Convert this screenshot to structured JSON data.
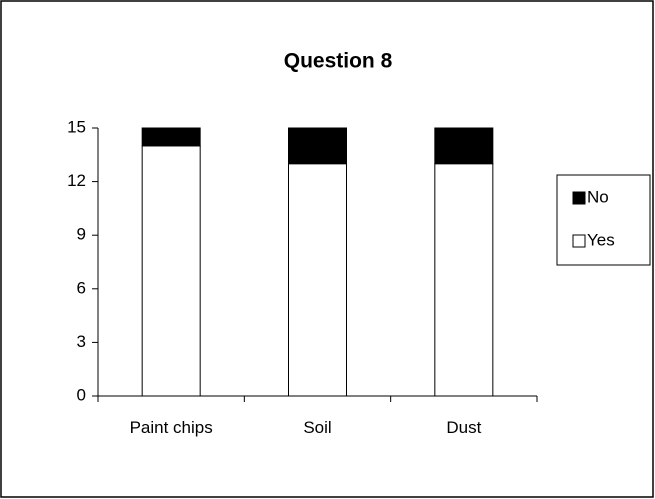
{
  "chart_data": {
    "type": "stacked_bar",
    "title": "Question 8",
    "categories": [
      "Paint chips",
      "Soil",
      "Dust"
    ],
    "series": [
      {
        "name": "Yes",
        "color": "#ffffff",
        "values": [
          14,
          13,
          13
        ]
      },
      {
        "name": "No",
        "color": "#000000",
        "values": [
          1,
          2,
          2
        ]
      }
    ],
    "ylim": [
      0,
      15
    ],
    "yticks": [
      0,
      3,
      6,
      9,
      12,
      15
    ],
    "legend": "right"
  }
}
